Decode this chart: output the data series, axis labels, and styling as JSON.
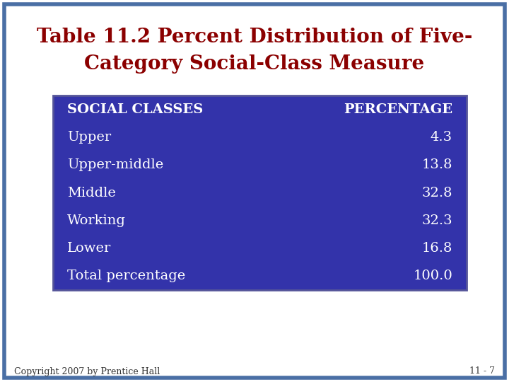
{
  "title_line1": "Table 11.2 Percent Distribution of Five-",
  "title_line2": "Category Social-Class Measure",
  "title_color": "#8B0000",
  "background_color": "#FFFFFF",
  "border_color": "#4A6FA5",
  "table_bg_color": "#3333AA",
  "table_text_color": "#FFFFFF",
  "header_col1": "SOCIAL CLASSES",
  "header_col2": "PERCENTAGE",
  "rows": [
    [
      "Upper",
      "4.3"
    ],
    [
      "Upper-middle",
      "13.8"
    ],
    [
      "Middle",
      "32.8"
    ],
    [
      "Working",
      "32.3"
    ],
    [
      "Lower",
      "16.8"
    ],
    [
      "Total percentage",
      "100.0"
    ]
  ],
  "footer_left": "Copyright 2007 by Prentice Hall",
  "footer_right": "11 - 7"
}
